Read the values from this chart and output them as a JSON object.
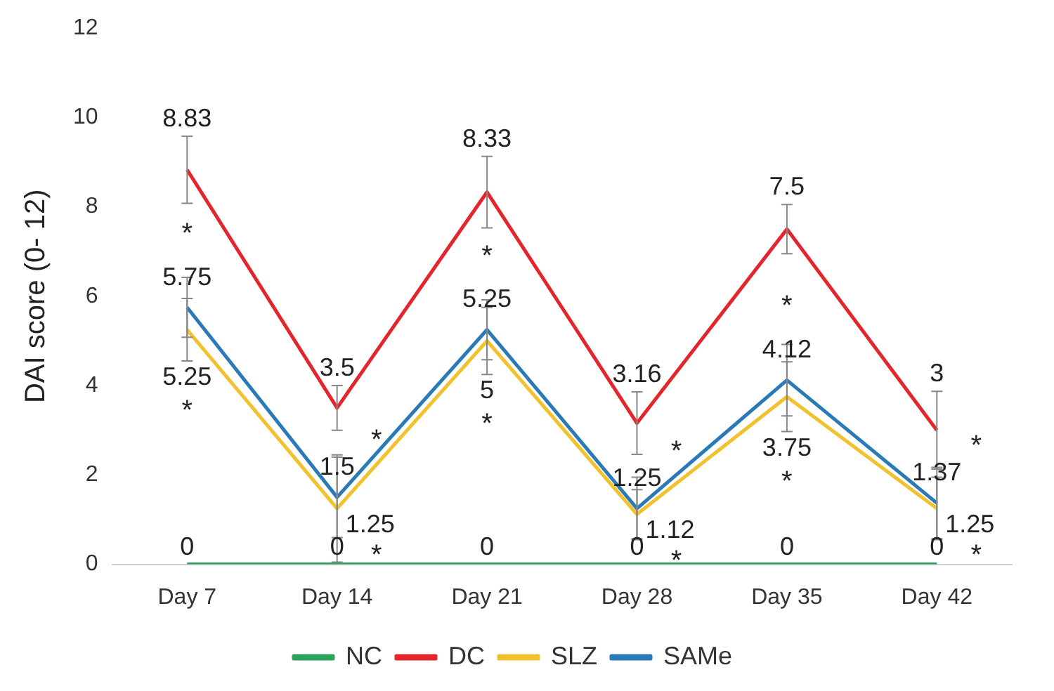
{
  "chart_data": {
    "type": "line",
    "ylabel": "DAI score (0- 12)",
    "categories": [
      "Day 7",
      "Day 14",
      "Day 21",
      "Day 28",
      "Day 35",
      "Day 42"
    ],
    "ylim": [
      0,
      12
    ],
    "yticks": [
      0,
      2,
      4,
      6,
      8,
      10,
      12
    ],
    "grid": false,
    "legend": "bottom",
    "marker": "none",
    "data_labels": true,
    "series": [
      {
        "name": "NC",
        "color": "#2ca25f",
        "values": [
          0,
          0,
          0,
          0,
          0,
          0
        ]
      },
      {
        "name": "DC",
        "color": "#e3262b",
        "values": [
          8.83,
          3.5,
          8.33,
          3.16,
          7.5,
          3
        ],
        "errors": [
          0.75,
          0.5,
          0.8,
          0.7,
          0.55,
          0.87
        ]
      },
      {
        "name": "SLZ",
        "color": "#f2c12e",
        "values": [
          5.25,
          1.25,
          5,
          1.12,
          3.75,
          1.25
        ],
        "errors": [
          0.7,
          1.2,
          0.75,
          0.55,
          0.78,
          0.7
        ]
      },
      {
        "name": "SAMe",
        "color": "#2a7ab8",
        "values": [
          5.75,
          1.5,
          5.25,
          1.25,
          4.12,
          1.37
        ],
        "errors": [
          0.67,
          0.9,
          0.67,
          0.7,
          0.8,
          0.8
        ]
      }
    ],
    "annotations": [
      "*",
      "*",
      "*",
      "*",
      "*",
      "*",
      "*",
      "*",
      "*",
      "*",
      "*",
      "*"
    ]
  }
}
